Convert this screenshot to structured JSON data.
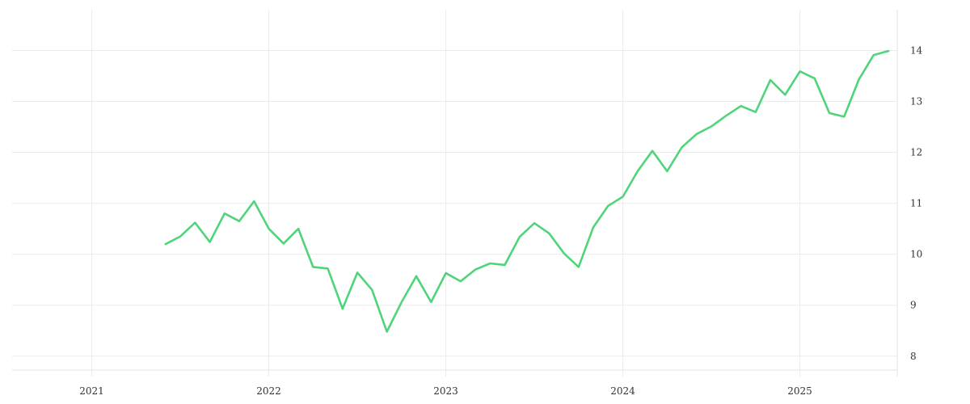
{
  "chart_data": {
    "type": "line",
    "title": "",
    "xlabel": "",
    "ylabel": "",
    "x": [
      "2021-06",
      "2021-07",
      "2021-08",
      "2021-09",
      "2021-10",
      "2021-11",
      "2021-12",
      "2022-01",
      "2022-02",
      "2022-03",
      "2022-04",
      "2022-05",
      "2022-06",
      "2022-07",
      "2022-08",
      "2022-09",
      "2022-10",
      "2022-11",
      "2022-12",
      "2023-01",
      "2023-02",
      "2023-03",
      "2023-04",
      "2023-05",
      "2023-06",
      "2023-07",
      "2023-08",
      "2023-09",
      "2023-10",
      "2023-11",
      "2023-12",
      "2024-01",
      "2024-02",
      "2024-03",
      "2024-04",
      "2024-05",
      "2024-06",
      "2024-07",
      "2024-08",
      "2024-09",
      "2024-10",
      "2024-11",
      "2024-12",
      "2025-01",
      "2025-02",
      "2025-03",
      "2025-04",
      "2025-05",
      "2025-06",
      "2025-07"
    ],
    "series": [
      {
        "values": [
          10.2,
          10.35,
          10.62,
          10.24,
          10.8,
          10.65,
          11.04,
          10.5,
          10.21,
          10.5,
          9.75,
          9.72,
          8.93,
          9.64,
          9.3,
          8.48,
          9.06,
          9.57,
          9.06,
          9.63,
          9.47,
          9.7,
          9.82,
          9.79,
          10.34,
          10.61,
          10.41,
          10.02,
          9.75,
          10.53,
          10.95,
          11.13,
          11.63,
          12.03,
          11.63,
          12.1,
          12.36,
          12.51,
          12.72,
          12.91,
          12.79,
          13.42,
          13.13,
          13.59,
          13.45,
          12.77,
          12.7,
          13.43,
          13.91,
          13.99
        ],
        "color": "#50d47a"
      }
    ],
    "xticks": [
      "2021",
      "2022",
      "2023",
      "2024",
      "2025"
    ],
    "yticks": [
      8,
      9,
      10,
      11,
      12,
      13,
      14
    ],
    "ylim": [
      7.6,
      14.8
    ],
    "y_axis_side": "right",
    "grid": true,
    "legend": "none"
  }
}
